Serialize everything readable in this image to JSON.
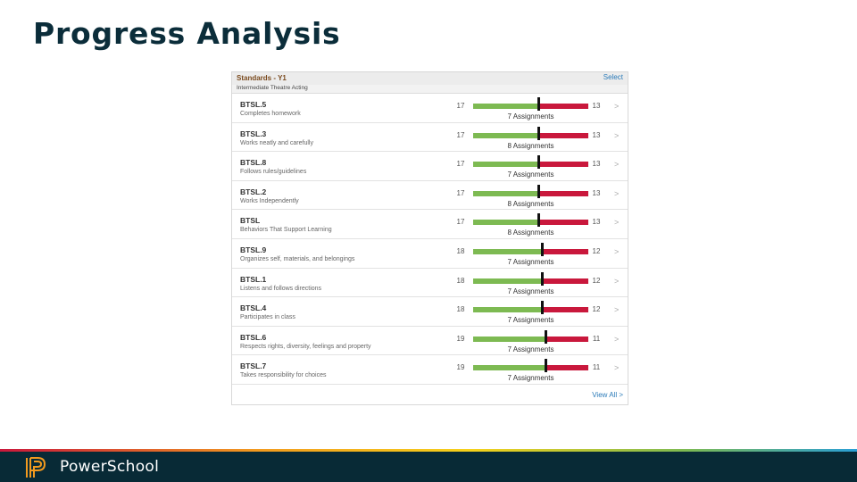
{
  "slide": {
    "title": "Progress Analysis"
  },
  "panel": {
    "title": "Standards - Y1",
    "select_label": "Select",
    "subtitle": "Intermediate Theatre Acting",
    "view_all_label": "View All >",
    "chevron": ">",
    "colors": {
      "green": "#7dba52",
      "red": "#c9183c"
    },
    "standards": [
      {
        "code": "BTSL.5",
        "desc": "Completes homework",
        "left": "17",
        "right": "13",
        "assignments": "7 Assignments",
        "green_fraction": 0.567
      },
      {
        "code": "BTSL.3",
        "desc": "Works neatly and carefully",
        "left": "17",
        "right": "13",
        "assignments": "8 Assignments",
        "green_fraction": 0.567
      },
      {
        "code": "BTSL.8",
        "desc": "Follows rules/guidelines",
        "left": "17",
        "right": "13",
        "assignments": "7 Assignments",
        "green_fraction": 0.567
      },
      {
        "code": "BTSL.2",
        "desc": "Works Independently",
        "left": "17",
        "right": "13",
        "assignments": "8 Assignments",
        "green_fraction": 0.567
      },
      {
        "code": "BTSL",
        "desc": "Behaviors That Support Learning",
        "left": "17",
        "right": "13",
        "assignments": "8 Assignments",
        "green_fraction": 0.567
      },
      {
        "code": "BTSL.9",
        "desc": "Organizes self, materials, and belongings",
        "left": "18",
        "right": "12",
        "assignments": "7 Assignments",
        "green_fraction": 0.6
      },
      {
        "code": "BTSL.1",
        "desc": "Listens and follows directions",
        "left": "18",
        "right": "12",
        "assignments": "7 Assignments",
        "green_fraction": 0.6
      },
      {
        "code": "BTSL.4",
        "desc": "Participates in class",
        "left": "18",
        "right": "12",
        "assignments": "7 Assignments",
        "green_fraction": 0.6
      },
      {
        "code": "BTSL.6",
        "desc": "Respects rights, diversity, feelings and property",
        "left": "19",
        "right": "11",
        "assignments": "7 Assignments",
        "green_fraction": 0.633
      },
      {
        "code": "BTSL.7",
        "desc": "Takes responsibility for choices",
        "left": "19",
        "right": "11",
        "assignments": "7 Assignments",
        "green_fraction": 0.633
      }
    ]
  },
  "footer": {
    "brand": "PowerSchool",
    "logo_icon": "powerschool-logo-icon"
  }
}
